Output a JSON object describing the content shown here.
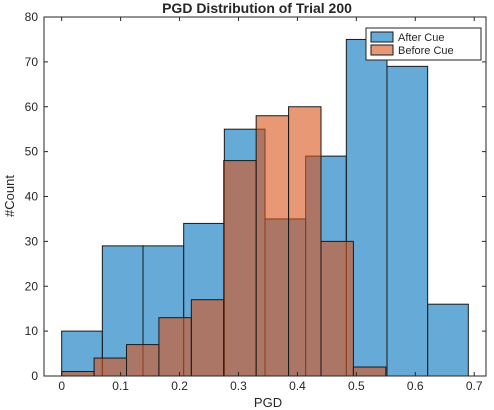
{
  "chart_data": {
    "type": "bar",
    "title": "PGD Distribution of Trial 200",
    "xlabel": "PGD",
    "ylabel": "#Count",
    "xlim": [
      -0.03,
      0.72
    ],
    "ylim": [
      0,
      80
    ],
    "xticks": [
      "0",
      "0.1",
      "0.2",
      "0.3",
      "0.4",
      "0.5",
      "0.6",
      "0.7"
    ],
    "xtick_values": [
      0,
      0.1,
      0.2,
      0.3,
      0.4,
      0.5,
      0.6,
      0.7
    ],
    "yticks": [
      "0",
      "10",
      "20",
      "30",
      "40",
      "50",
      "60",
      "70",
      "80"
    ],
    "ytick_values": [
      0,
      10,
      20,
      30,
      40,
      50,
      60,
      70,
      80
    ],
    "grid": false,
    "legend_position": "top-right",
    "series": [
      {
        "name": "After Cue",
        "color": "#0072BD",
        "opacity": 0.6,
        "bins": [
          {
            "x0": 0.0,
            "x1": 0.069,
            "count": 10
          },
          {
            "x0": 0.069,
            "x1": 0.138,
            "count": 29
          },
          {
            "x0": 0.138,
            "x1": 0.207,
            "count": 29
          },
          {
            "x0": 0.207,
            "x1": 0.276,
            "count": 34
          },
          {
            "x0": 0.276,
            "x1": 0.345,
            "count": 55
          },
          {
            "x0": 0.345,
            "x1": 0.414,
            "count": 35
          },
          {
            "x0": 0.414,
            "x1": 0.483,
            "count": 49
          },
          {
            "x0": 0.483,
            "x1": 0.552,
            "count": 75
          },
          {
            "x0": 0.552,
            "x1": 0.621,
            "count": 69
          },
          {
            "x0": 0.621,
            "x1": 0.69,
            "count": 16
          }
        ]
      },
      {
        "name": "Before Cue",
        "color": "#D95319",
        "opacity": 0.6,
        "bins": [
          {
            "x0": 0.0,
            "x1": 0.055,
            "count": 1
          },
          {
            "x0": 0.055,
            "x1": 0.11,
            "count": 4
          },
          {
            "x0": 0.11,
            "x1": 0.165,
            "count": 7
          },
          {
            "x0": 0.165,
            "x1": 0.22,
            "count": 13
          },
          {
            "x0": 0.22,
            "x1": 0.275,
            "count": 17
          },
          {
            "x0": 0.275,
            "x1": 0.33,
            "count": 48
          },
          {
            "x0": 0.33,
            "x1": 0.385,
            "count": 58
          },
          {
            "x0": 0.385,
            "x1": 0.44,
            "count": 60
          },
          {
            "x0": 0.44,
            "x1": 0.495,
            "count": 30
          },
          {
            "x0": 0.495,
            "x1": 0.55,
            "count": 2
          }
        ]
      }
    ]
  }
}
